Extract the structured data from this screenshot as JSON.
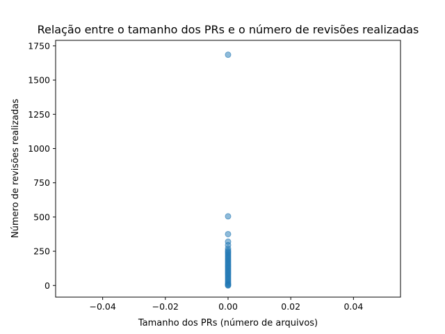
{
  "chart_data": {
    "type": "scatter",
    "title": "Relação entre o tamanho dos PRs e o número de revisões realizadas",
    "xlabel": "Tamanho dos PRs (número de arquivos)",
    "ylabel": "Número de revisões realizadas",
    "xlim": [
      -0.055,
      0.055
    ],
    "ylim": [
      -85,
      1790
    ],
    "xticks": [
      "−0.04",
      "−0.02",
      "0.00",
      "0.02",
      "0.04"
    ],
    "xtick_values": [
      -0.04,
      -0.02,
      0.0,
      0.02,
      0.04
    ],
    "yticks": [
      "0",
      "250",
      "500",
      "750",
      "1000",
      "1250",
      "1500",
      "1750"
    ],
    "ytick_values": [
      0,
      250,
      500,
      750,
      1000,
      1250,
      1500,
      1750
    ],
    "grid": false,
    "color": "#1f77b4",
    "points": [
      {
        "x": 0,
        "y": 1685
      },
      {
        "x": 0,
        "y": 505
      },
      {
        "x": 0,
        "y": 375
      },
      {
        "x": 0,
        "y": 320
      },
      {
        "x": 0,
        "y": 295
      },
      {
        "x": 0,
        "y": 270
      },
      {
        "x": 0,
        "y": 255
      },
      {
        "x": 0,
        "y": 245
      },
      {
        "x": 0,
        "y": 235
      },
      {
        "x": 0,
        "y": 225
      },
      {
        "x": 0,
        "y": 215
      },
      {
        "x": 0,
        "y": 205
      },
      {
        "x": 0,
        "y": 195
      },
      {
        "x": 0,
        "y": 185
      },
      {
        "x": 0,
        "y": 175
      },
      {
        "x": 0,
        "y": 165
      },
      {
        "x": 0,
        "y": 155
      },
      {
        "x": 0,
        "y": 145
      },
      {
        "x": 0,
        "y": 135
      },
      {
        "x": 0,
        "y": 125
      },
      {
        "x": 0,
        "y": 115
      },
      {
        "x": 0,
        "y": 105
      },
      {
        "x": 0,
        "y": 95
      },
      {
        "x": 0,
        "y": 85
      },
      {
        "x": 0,
        "y": 75
      },
      {
        "x": 0,
        "y": 65
      },
      {
        "x": 0,
        "y": 55
      },
      {
        "x": 0,
        "y": 45
      },
      {
        "x": 0,
        "y": 35
      },
      {
        "x": 0,
        "y": 25
      },
      {
        "x": 0,
        "y": 15
      },
      {
        "x": 0,
        "y": 8
      },
      {
        "x": 0,
        "y": 3
      },
      {
        "x": 0,
        "y": 0
      }
    ]
  }
}
